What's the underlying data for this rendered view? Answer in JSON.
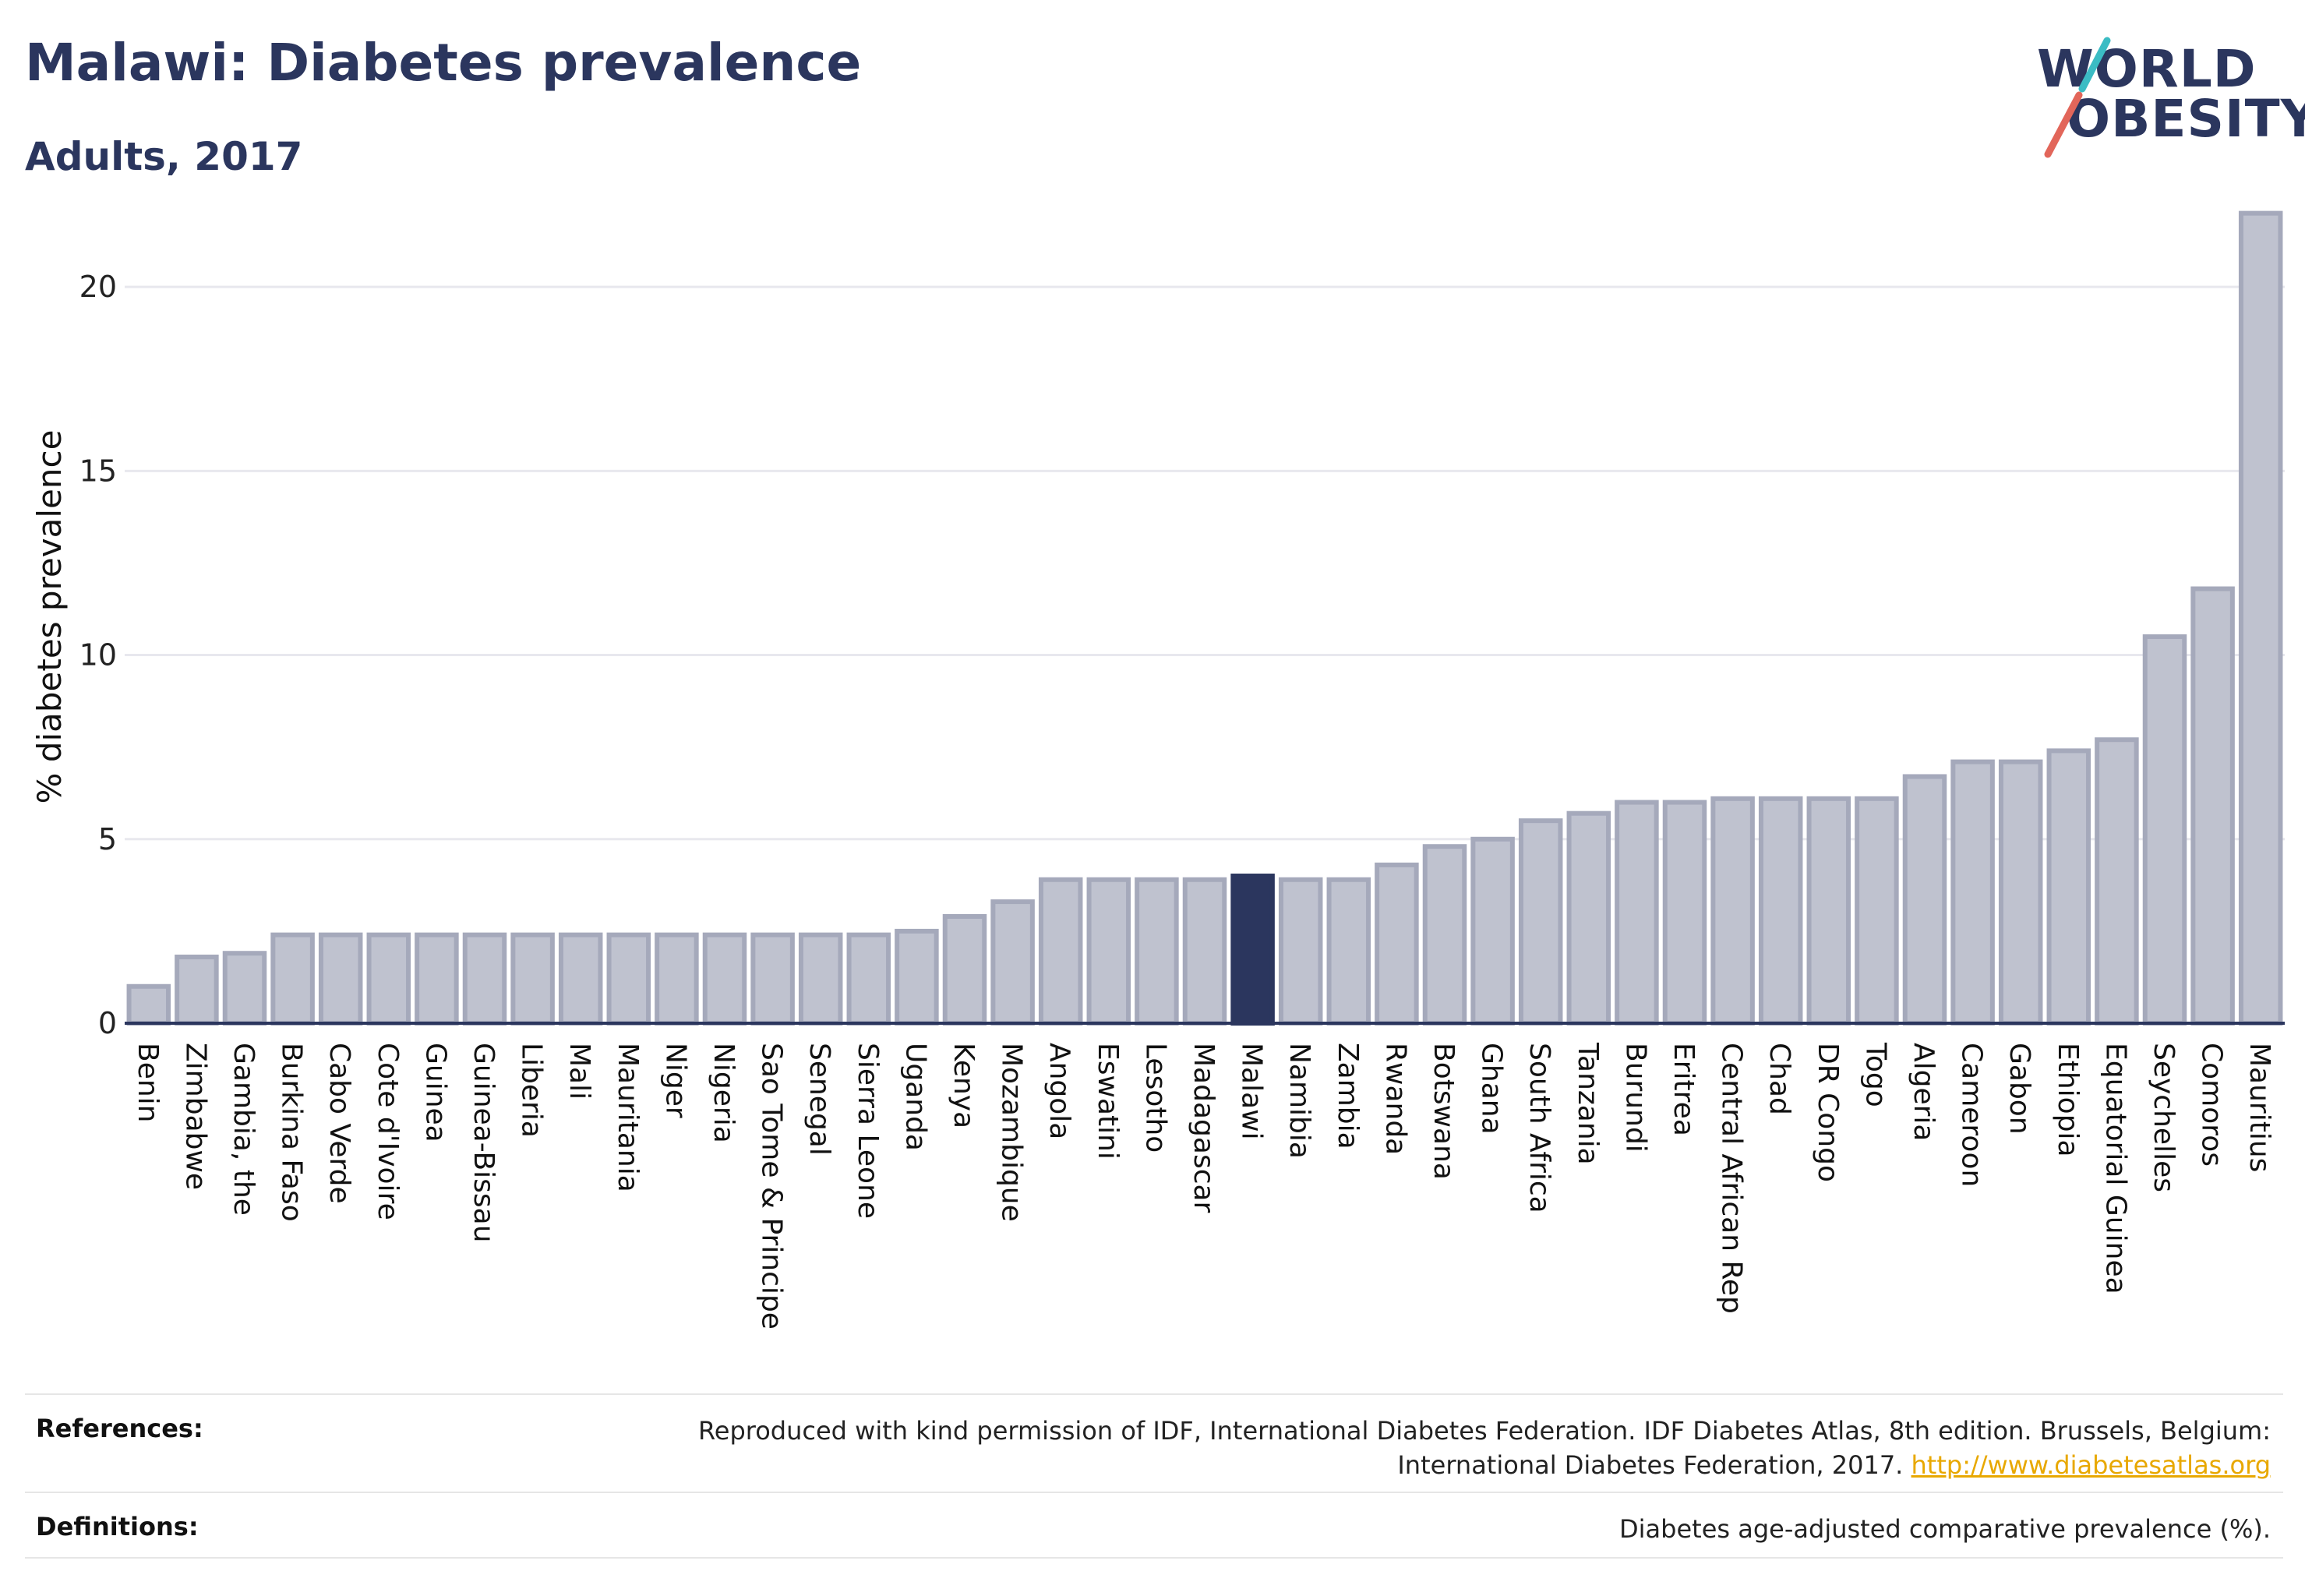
{
  "header": {
    "title": "Malawi: Diabetes prevalence",
    "subtitle": "Adults, 2017"
  },
  "logo": {
    "line1": "WORLD",
    "line2": "OBESITY"
  },
  "colors": {
    "bar": "#bfc2cf",
    "bar_edge": "#a5a9bb",
    "highlight": "#2b365e",
    "grid": "#e8e8ee",
    "axis": "#2b365e"
  },
  "chart_data": {
    "type": "bar",
    "title": "Malawi: Diabetes prevalence",
    "subtitle": "Adults, 2017",
    "xlabel": "",
    "ylabel": "% diabetes prevalence",
    "ylim": [
      0,
      22.5
    ],
    "yticks": [
      0,
      5,
      10,
      15,
      20
    ],
    "grid": true,
    "highlight": "Malawi",
    "categories": [
      "Benin",
      "Zimbabwe",
      "Gambia, the",
      "Burkina Faso",
      "Cabo Verde",
      "Cote d'Ivoire",
      "Guinea",
      "Guinea-Bissau",
      "Liberia",
      "Mali",
      "Mauritania",
      "Niger",
      "Nigeria",
      "Sao Tome & Principe",
      "Senegal",
      "Sierra Leone",
      "Uganda",
      "Kenya",
      "Mozambique",
      "Angola",
      "Eswatini",
      "Lesotho",
      "Madagascar",
      "Malawi",
      "Namibia",
      "Zambia",
      "Rwanda",
      "Botswana",
      "Ghana",
      "South Africa",
      "Tanzania",
      "Burundi",
      "Eritrea",
      "Central African Rep",
      "Chad",
      "DR Congo",
      "Togo",
      "Algeria",
      "Cameroon",
      "Gabon",
      "Ethiopia",
      "Equatorial Guinea",
      "Seychelles",
      "Comoros",
      "Mauritius"
    ],
    "values": [
      1.0,
      1.8,
      1.9,
      2.4,
      2.4,
      2.4,
      2.4,
      2.4,
      2.4,
      2.4,
      2.4,
      2.4,
      2.4,
      2.4,
      2.4,
      2.4,
      2.5,
      2.9,
      3.3,
      3.9,
      3.9,
      3.9,
      3.9,
      4.0,
      3.9,
      3.9,
      4.3,
      4.8,
      5.0,
      5.5,
      5.7,
      6.0,
      6.0,
      6.1,
      6.1,
      6.1,
      6.1,
      6.7,
      7.1,
      7.1,
      7.4,
      7.7,
      10.5,
      11.8,
      22.0
    ]
  },
  "footer": {
    "references_label": "References:",
    "references_line1": "Reproduced with kind permission of IDF, International Diabetes Federation. IDF Diabetes Atlas, 8th edition. Brussels, Belgium:",
    "references_line2": "International Diabetes Federation, 2017.",
    "references_link": "http://www.diabetesatlas.org",
    "definitions_label": "Definitions:",
    "definitions_text": "Diabetes age-adjusted comparative prevalence (%)."
  }
}
